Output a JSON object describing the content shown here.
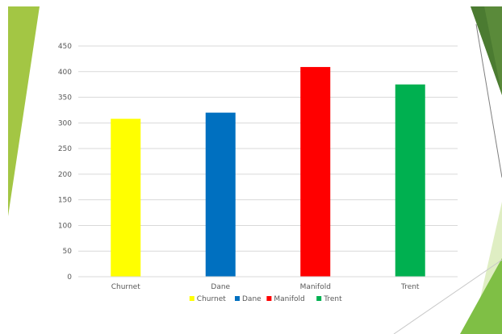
{
  "chart_data": {
    "type": "bar",
    "categories": [
      "Churnet",
      "Dane",
      "Manifold",
      "Trent"
    ],
    "values": [
      308,
      320,
      409,
      375
    ],
    "colors": [
      "#ffff00",
      "#0070c0",
      "#ff0000",
      "#00b050"
    ],
    "title": "",
    "xlabel": "",
    "ylabel": "",
    "ylim": [
      0,
      450
    ],
    "yticks": [
      0,
      50,
      100,
      150,
      200,
      250,
      300,
      350,
      400,
      450
    ],
    "grid": true,
    "legend": {
      "position": "bottom",
      "entries": [
        "Churnet",
        "Dane",
        "Manifold",
        "Trent"
      ]
    }
  },
  "theme": {
    "accent_dark_green": "#4f8a2a",
    "accent_light_green": "#8dc63f",
    "accent_pale_green": "#d7e7b3"
  }
}
